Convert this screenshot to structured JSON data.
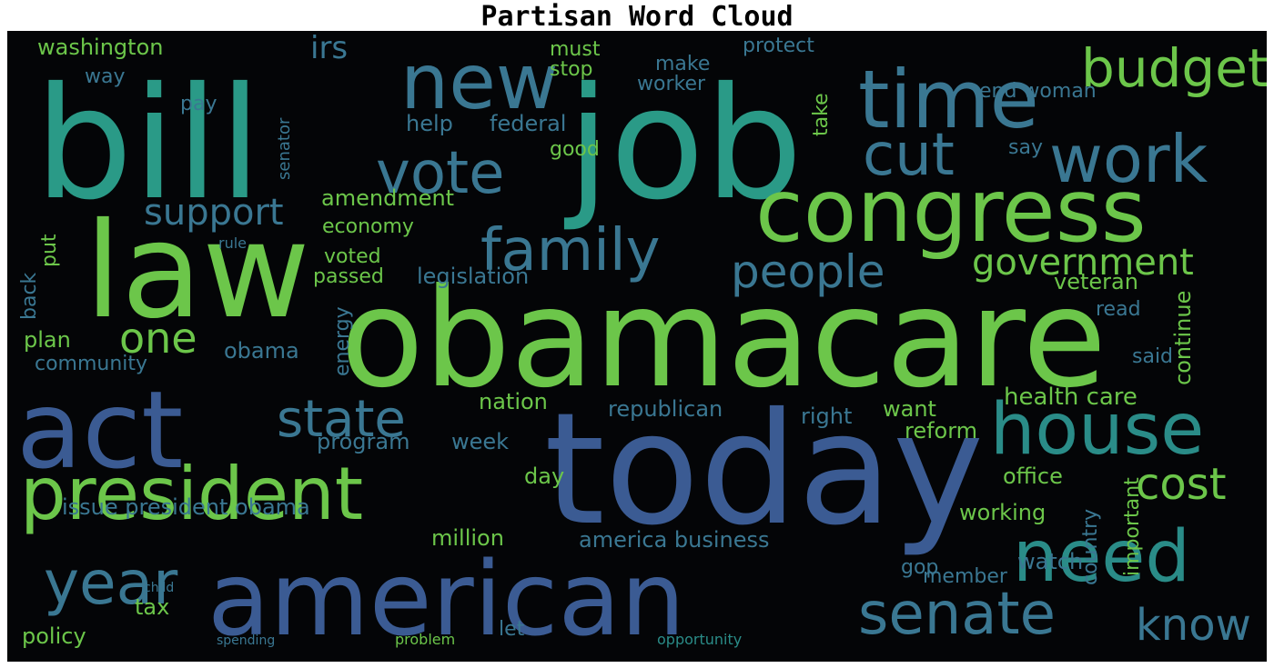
{
  "title": "Partisan Word Cloud",
  "colors": {
    "background": "#040507",
    "green": "#6cc64a",
    "teal": "#2a8c88",
    "blue": "#3c5a92",
    "steel": "#3a7792",
    "lime": "#8fd23c"
  },
  "words": [
    "bill",
    "job",
    "law",
    "obamacare",
    "today",
    "american",
    "act",
    "congress",
    "time",
    "new",
    "president",
    "family",
    "vote",
    "work",
    "cut",
    "budget",
    "house",
    "need",
    "senate",
    "people",
    "government",
    "support",
    "state",
    "year",
    "one",
    "know",
    "cost",
    "washington",
    "irs",
    "way",
    "pay",
    "help",
    "federal",
    "must",
    "stop",
    "make",
    "worker",
    "protect",
    "end woman",
    "take",
    "good",
    "say",
    "amendment",
    "economy",
    "voted",
    "passed",
    "legislation",
    "back",
    "put",
    "plan",
    "obama",
    "energy",
    "community",
    "nation",
    "republican",
    "health care",
    "continue",
    "veteran",
    "read",
    "program",
    "week",
    "right",
    "want",
    "reform",
    "office",
    "said",
    "day",
    "million",
    "issue president obama",
    "america business",
    "important",
    "country",
    "working",
    "watch",
    "gop",
    "member",
    "policy",
    "tax",
    "let",
    "problem",
    "opportunity",
    "spending",
    "rule",
    "child",
    "senator"
  ]
}
